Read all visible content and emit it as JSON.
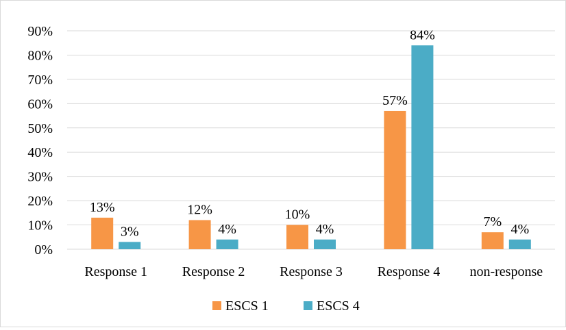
{
  "chart_data": {
    "type": "bar",
    "categories": [
      "Response 1",
      "Response 2",
      "Response 3",
      "Response 4",
      "non-response"
    ],
    "series": [
      {
        "name": "ESCS 1",
        "color": "#F79646",
        "values": [
          13,
          12,
          10,
          57,
          7
        ],
        "labels": [
          "13%",
          "12%",
          "10%",
          "57%",
          "7%"
        ]
      },
      {
        "name": "ESCS 4",
        "color": "#4BACC6",
        "values": [
          3,
          4,
          4,
          84,
          4
        ],
        "labels": [
          "3%",
          "4%",
          "4%",
          "84%",
          "4%"
        ]
      }
    ],
    "ylim": [
      0,
      90
    ],
    "yticks": [
      0,
      10,
      20,
      30,
      40,
      50,
      60,
      70,
      80,
      90
    ],
    "ytick_labels": [
      "0%",
      "10%",
      "20%",
      "30%",
      "40%",
      "50%",
      "60%",
      "70%",
      "80%",
      "90%"
    ],
    "title": "",
    "xlabel": "",
    "ylabel": "",
    "grid": true,
    "gridline_color": "#d9d9d9",
    "legend_position": "bottom"
  }
}
